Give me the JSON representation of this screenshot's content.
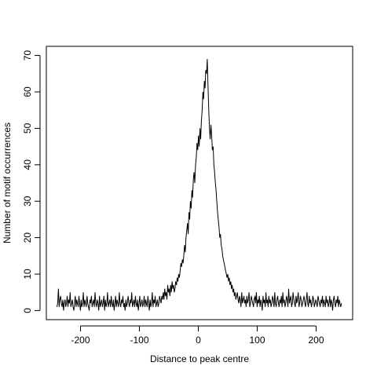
{
  "chart_data": {
    "type": "line",
    "title": "",
    "xlabel": "Distance to peak centre",
    "ylabel": "Number of motif occurrences",
    "xlim": [
      -258,
      262
    ],
    "ylim": [
      -2.5,
      72.5
    ],
    "xticks": [
      -200,
      -100,
      0,
      100,
      200
    ],
    "xtick_labels": [
      "-200",
      "-100",
      "0",
      "100",
      "200"
    ],
    "yticks": [
      0,
      10,
      20,
      30,
      40,
      50,
      60,
      70
    ],
    "ytick_labels": [
      "0",
      "10",
      "20",
      "30",
      "40",
      "50",
      "60",
      "70"
    ],
    "grid": false,
    "line_color": "#000000",
    "x_range": [
      -240,
      243
    ],
    "series": [
      {
        "values": [
          1,
          2,
          6,
          1,
          3,
          4,
          2,
          1,
          3,
          0,
          2,
          3,
          1,
          2,
          4,
          1,
          3,
          2,
          5,
          1,
          2,
          3,
          1,
          0,
          2,
          4,
          1,
          3,
          2,
          1,
          4,
          2,
          0,
          3,
          1,
          2,
          5,
          1,
          3,
          2,
          1,
          4,
          2,
          1,
          0,
          3,
          2,
          4,
          1,
          2,
          3,
          1,
          5,
          2,
          1,
          3,
          2,
          0,
          4,
          1,
          2,
          3,
          1,
          2,
          4,
          0,
          3,
          1,
          2,
          5,
          1,
          2,
          3,
          1,
          4,
          2,
          1,
          3,
          0,
          2,
          4,
          1,
          3,
          2,
          1,
          5,
          2,
          1,
          3,
          2,
          4,
          1,
          2,
          0,
          3,
          1,
          2,
          4,
          2,
          1,
          3,
          2,
          5,
          1,
          2,
          3,
          1,
          4,
          2,
          1,
          3,
          0,
          2,
          4,
          1,
          2,
          3,
          1,
          2,
          4,
          1,
          3,
          2,
          1,
          4,
          2,
          0,
          3,
          1,
          2,
          5,
          1,
          3,
          2,
          4,
          1,
          2,
          3,
          1,
          2,
          4,
          3,
          2,
          4,
          3,
          5,
          3,
          6,
          4,
          5,
          3,
          7,
          5,
          6,
          4,
          7,
          5,
          8,
          6,
          7,
          5,
          6,
          8,
          7,
          9,
          8,
          10,
          9,
          11,
          13,
          12,
          14,
          13,
          15,
          18,
          16,
          20,
          22,
          24,
          21,
          27,
          25,
          30,
          28,
          33,
          31,
          36,
          38,
          35,
          40,
          42,
          46,
          44,
          48,
          45,
          50,
          47,
          52,
          55,
          60,
          58,
          63,
          61,
          66,
          65,
          69,
          62,
          55,
          50,
          47,
          51,
          48,
          44,
          45,
          40,
          38,
          35,
          33,
          30,
          27,
          25,
          23,
          20,
          21,
          18,
          17,
          15,
          14,
          13,
          12,
          11,
          10,
          9,
          10,
          8,
          9,
          7,
          8,
          6,
          7,
          5,
          6,
          4,
          5,
          3,
          4,
          5,
          3,
          2,
          4,
          3,
          1,
          5,
          2,
          3,
          4,
          2,
          3,
          1,
          4,
          2,
          3,
          5,
          1,
          2,
          4,
          3,
          2,
          1,
          3,
          4,
          2,
          5,
          1,
          3,
          2,
          4,
          1,
          3,
          2,
          0,
          4,
          2,
          3,
          1,
          5,
          2,
          3,
          1,
          4,
          2,
          3,
          1,
          2,
          4,
          3,
          1,
          5,
          2,
          1,
          3,
          4,
          2,
          1,
          3,
          2,
          4,
          1,
          5,
          2,
          3,
          1,
          2,
          4,
          3,
          1,
          6,
          2,
          3,
          4,
          1,
          2,
          5,
          3,
          2,
          1,
          4,
          2,
          3,
          5,
          1,
          2,
          4,
          3,
          1,
          2,
          3,
          4,
          2,
          1,
          3,
          5,
          2,
          1,
          4,
          2,
          3,
          1,
          2,
          4,
          3,
          1,
          2,
          3,
          2,
          1,
          4,
          3,
          2,
          1,
          3,
          2,
          4,
          1,
          3,
          2,
          1,
          4,
          2,
          3,
          1,
          2,
          4,
          1,
          3,
          2,
          0,
          3,
          4,
          2,
          1,
          3,
          2,
          4,
          1,
          3,
          2,
          1,
          2
        ]
      }
    ]
  }
}
